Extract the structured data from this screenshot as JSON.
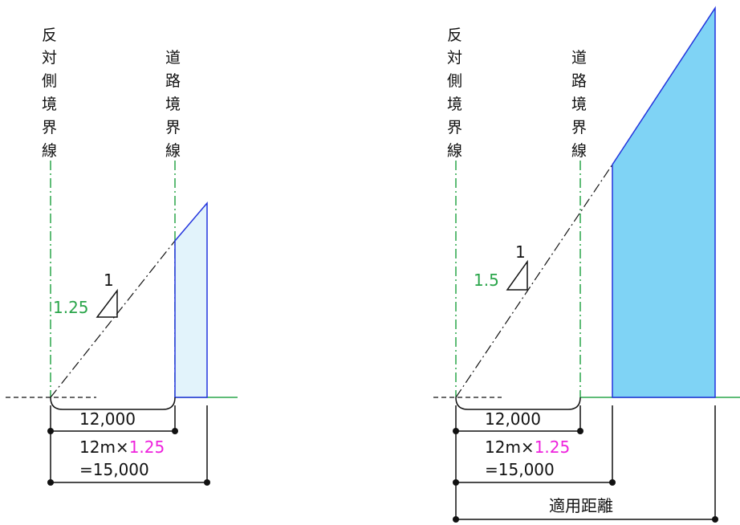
{
  "left_panel": {
    "opposite_boundary_label": [
      "反",
      "対",
      "側",
      "境",
      "界",
      "線"
    ],
    "road_boundary_label": [
      "道",
      "路",
      "境",
      "界",
      "線"
    ],
    "slope_rise": "1",
    "slope_run": "1.25",
    "road_width": "12,000",
    "formula_line1_prefix": "12m×",
    "formula_line1_factor": "1.25",
    "formula_line2": "=15,000"
  },
  "right_panel": {
    "opposite_boundary_label": [
      "反",
      "対",
      "側",
      "境",
      "界",
      "線"
    ],
    "road_boundary_label": [
      "道",
      "路",
      "境",
      "界",
      "線"
    ],
    "slope_rise": "1",
    "slope_run": "1.5",
    "road_width": "12,000",
    "formula_line1_prefix": "12m×",
    "formula_line1_factor": "1.25",
    "formula_line2": "=15,000",
    "applied_distance_label": "適用距離"
  },
  "colors": {
    "boundary_line": "#2aa54a",
    "slope_fill_light": "#e2f3fb",
    "slope_fill_strong": "#7fd3f5",
    "slope_outline": "#2233dd",
    "factor_text": "#ee22dd",
    "slope_run_text": "#2aa54a"
  }
}
